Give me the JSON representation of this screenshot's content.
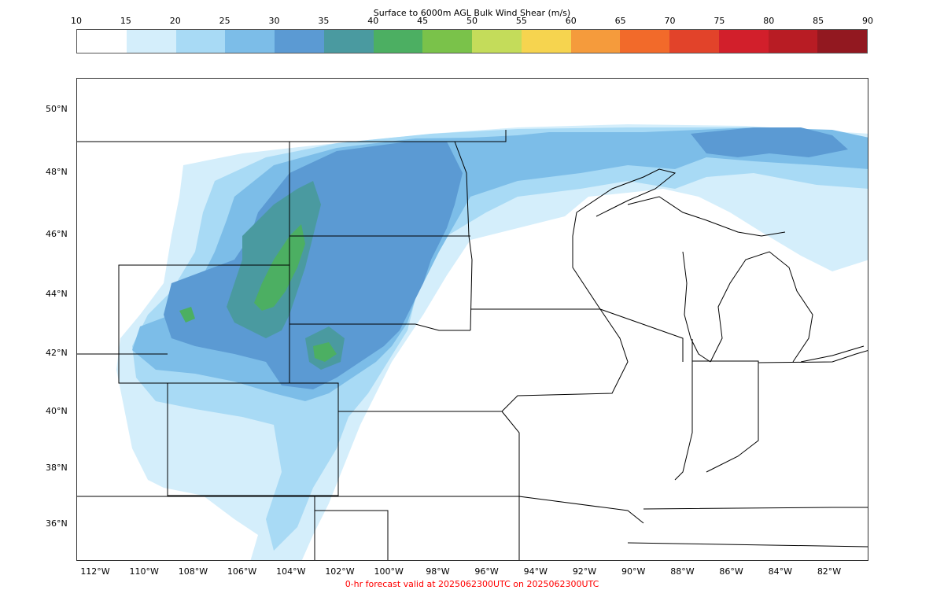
{
  "colorbar": {
    "title": "Surface to 6000m AGL Bulk Wind Shear (m/s)",
    "ticks": [
      "10",
      "15",
      "20",
      "25",
      "30",
      "35",
      "40",
      "45",
      "50",
      "55",
      "60",
      "65",
      "70",
      "75",
      "80",
      "85",
      "90"
    ],
    "colors": [
      "#ffffff",
      "#d4eefb",
      "#a8daf5",
      "#7cbde8",
      "#5b9ad3",
      "#4a9aa0",
      "#4caf62",
      "#7ac24a",
      "#c4dc5a",
      "#f6d44f",
      "#f59b3c",
      "#f26a2a",
      "#e2432a",
      "#d21f2b",
      "#b81c24",
      "#921820"
    ]
  },
  "map": {
    "lat_labels": [
      "50°N",
      "48°N",
      "46°N",
      "44°N",
      "42°N",
      "40°N",
      "38°N",
      "36°N"
    ],
    "lon_labels": [
      "112°W",
      "110°W",
      "108°W",
      "106°W",
      "104°W",
      "102°W",
      "100°W",
      "98°W",
      "96°W",
      "94°W",
      "92°W",
      "90°W",
      "88°W",
      "86°W",
      "84°W",
      "82°W"
    ],
    "field_colors": {
      "c15": "#d4eefb",
      "c20": "#a8daf5",
      "c25": "#7cbde8",
      "c30": "#5b9ad3",
      "c35": "#4a9aa0",
      "c40": "#4caf62"
    }
  },
  "footer": {
    "text": "0-hr forecast valid at 2025062300UTC on 2025062300UTC",
    "color": "#ff0000"
  }
}
